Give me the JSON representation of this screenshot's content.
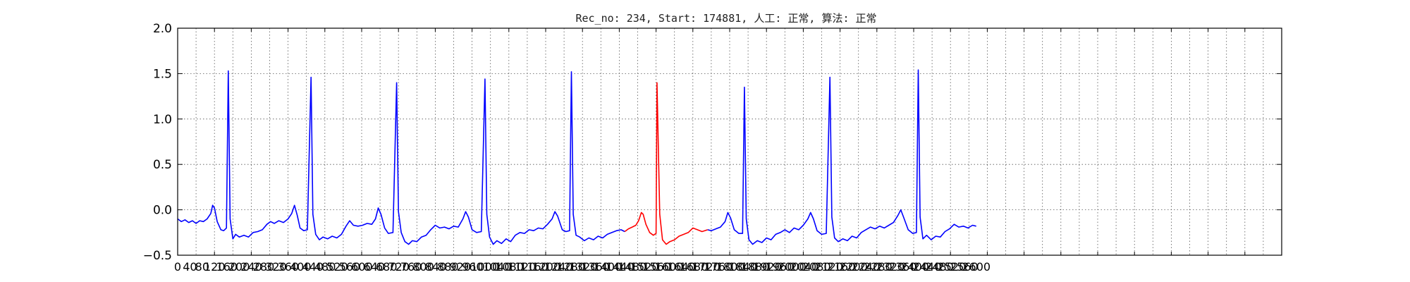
{
  "chart_data": {
    "type": "line",
    "title": "Rec_no: 234, Start: 174881, 人工: 正常, 算法: 正常",
    "xlabel": "",
    "ylabel": "",
    "xlim": [
      0,
      1200
    ],
    "ylim": [
      -0.5,
      2.0
    ],
    "grid": true,
    "y_ticks": [
      "2.0",
      "1.5",
      "1.0",
      "0.5",
      "0.0",
      "−0.5"
    ],
    "y_tick_values": [
      2.0,
      1.5,
      1.0,
      0.5,
      0.0,
      -0.5
    ],
    "x_ticks": [
      0,
      40,
      80,
      120,
      160,
      200,
      240,
      280,
      320,
      360,
      400,
      440,
      480,
      520,
      560,
      600,
      640,
      680,
      720,
      760,
      800,
      840,
      880,
      920,
      960,
      1000,
      1040,
      1080,
      1120,
      1160,
      1200,
      1240,
      1280,
      1320,
      1360,
      1400,
      1440,
      1480,
      1520,
      1560,
      1600,
      1640,
      1680,
      1720,
      1760,
      1800,
      1840,
      1880,
      1920,
      1960,
      2000,
      2040,
      2080,
      2120,
      2160,
      2200,
      2240,
      2280,
      2320,
      2360,
      2400,
      2440,
      2480,
      2520,
      2560,
      2600
    ],
    "signal_end_x": 868,
    "series": [
      {
        "color": "#0000ff",
        "segments": [
          [
            [
              0,
              -0.1
            ],
            [
              4,
              -0.13
            ],
            [
              8,
              -0.11
            ],
            [
              12,
              -0.14
            ],
            [
              16,
              -0.12
            ],
            [
              20,
              -0.15
            ],
            [
              24,
              -0.12
            ],
            [
              28,
              -0.13
            ],
            [
              32,
              -0.1
            ],
            [
              36,
              -0.04
            ],
            [
              38,
              0.05
            ],
            [
              40,
              0.02
            ],
            [
              43,
              -0.13
            ],
            [
              47,
              -0.22
            ],
            [
              50,
              -0.23
            ],
            [
              53,
              -0.2
            ],
            [
              55,
              1.53
            ],
            [
              57,
              -0.1
            ],
            [
              60,
              -0.32
            ],
            [
              63,
              -0.27
            ],
            [
              67,
              -0.3
            ],
            [
              72,
              -0.28
            ],
            [
              77,
              -0.3
            ],
            [
              82,
              -0.25
            ],
            [
              87,
              -0.24
            ],
            [
              92,
              -0.22
            ],
            [
              97,
              -0.16
            ],
            [
              101,
              -0.13
            ],
            [
              105,
              -0.15
            ],
            [
              110,
              -0.12
            ],
            [
              115,
              -0.14
            ],
            [
              120,
              -0.1
            ],
            [
              124,
              -0.04
            ],
            [
              127,
              0.05
            ],
            [
              130,
              -0.06
            ],
            [
              133,
              -0.2
            ],
            [
              137,
              -0.23
            ],
            [
              141,
              -0.22
            ],
            [
              145,
              1.46
            ],
            [
              147,
              -0.05
            ],
            [
              150,
              -0.27
            ],
            [
              154,
              -0.33
            ],
            [
              158,
              -0.3
            ],
            [
              163,
              -0.32
            ],
            [
              168,
              -0.29
            ],
            [
              173,
              -0.31
            ],
            [
              178,
              -0.27
            ],
            [
              183,
              -0.18
            ],
            [
              187,
              -0.12
            ],
            [
              191,
              -0.17
            ],
            [
              196,
              -0.18
            ],
            [
              201,
              -0.17
            ],
            [
              206,
              -0.15
            ],
            [
              211,
              -0.16
            ],
            [
              215,
              -0.1
            ],
            [
              218,
              0.02
            ],
            [
              221,
              -0.05
            ],
            [
              225,
              -0.2
            ],
            [
              229,
              -0.26
            ],
            [
              234,
              -0.25
            ],
            [
              238,
              1.4
            ],
            [
              240,
              -0.02
            ],
            [
              243,
              -0.25
            ],
            [
              247,
              -0.35
            ],
            [
              251,
              -0.38
            ],
            [
              255,
              -0.34
            ],
            [
              260,
              -0.35
            ],
            [
              265,
              -0.3
            ],
            [
              270,
              -0.28
            ],
            [
              275,
              -0.22
            ],
            [
              280,
              -0.17
            ],
            [
              285,
              -0.2
            ],
            [
              290,
              -0.19
            ],
            [
              295,
              -0.21
            ],
            [
              300,
              -0.18
            ],
            [
              305,
              -0.19
            ],
            [
              310,
              -0.1
            ],
            [
              313,
              -0.02
            ],
            [
              316,
              -0.08
            ],
            [
              320,
              -0.22
            ],
            [
              325,
              -0.25
            ],
            [
              330,
              -0.24
            ],
            [
              334,
              1.44
            ],
            [
              336,
              -0.05
            ],
            [
              339,
              -0.3
            ],
            [
              343,
              -0.38
            ],
            [
              347,
              -0.34
            ],
            [
              352,
              -0.37
            ],
            [
              357,
              -0.32
            ],
            [
              362,
              -0.35
            ],
            [
              367,
              -0.28
            ],
            [
              372,
              -0.25
            ],
            [
              377,
              -0.26
            ],
            [
              382,
              -0.22
            ],
            [
              387,
              -0.23
            ],
            [
              392,
              -0.2
            ],
            [
              397,
              -0.21
            ],
            [
              402,
              -0.16
            ],
            [
              407,
              -0.1
            ],
            [
              410,
              -0.02
            ],
            [
              413,
              -0.07
            ],
            [
              418,
              -0.22
            ],
            [
              422,
              -0.24
            ],
            [
              426,
              -0.23
            ],
            [
              428,
              1.52
            ],
            [
              430,
              -0.05
            ],
            [
              433,
              -0.28
            ],
            [
              437,
              -0.3
            ],
            [
              442,
              -0.34
            ],
            [
              447,
              -0.31
            ],
            [
              452,
              -0.33
            ],
            [
              457,
              -0.29
            ],
            [
              462,
              -0.31
            ],
            [
              467,
              -0.27
            ],
            [
              472,
              -0.25
            ],
            [
              477,
              -0.23
            ],
            [
              482,
              -0.22
            ],
            [
              486,
              -0.24
            ]
          ],
          [
            [
              576,
              -0.22
            ],
            [
              580,
              -0.23
            ],
            [
              585,
              -0.21
            ],
            [
              590,
              -0.19
            ],
            [
              595,
              -0.13
            ],
            [
              598,
              -0.03
            ],
            [
              601,
              -0.09
            ],
            [
              605,
              -0.22
            ],
            [
              610,
              -0.26
            ],
            [
              614,
              -0.26
            ],
            [
              616,
              1.35
            ],
            [
              618,
              -0.1
            ],
            [
              621,
              -0.33
            ],
            [
              625,
              -0.38
            ],
            [
              630,
              -0.34
            ],
            [
              635,
              -0.36
            ],
            [
              640,
              -0.31
            ],
            [
              645,
              -0.33
            ],
            [
              650,
              -0.27
            ],
            [
              655,
              -0.25
            ],
            [
              660,
              -0.22
            ],
            [
              665,
              -0.25
            ],
            [
              670,
              -0.2
            ],
            [
              675,
              -0.22
            ],
            [
              680,
              -0.17
            ],
            [
              685,
              -0.1
            ],
            [
              688,
              -0.03
            ],
            [
              691,
              -0.1
            ],
            [
              695,
              -0.23
            ],
            [
              700,
              -0.27
            ],
            [
              705,
              -0.26
            ],
            [
              709,
              1.46
            ],
            [
              711,
              -0.08
            ],
            [
              714,
              -0.31
            ],
            [
              718,
              -0.35
            ],
            [
              723,
              -0.32
            ],
            [
              728,
              -0.34
            ],
            [
              733,
              -0.29
            ],
            [
              738,
              -0.31
            ],
            [
              743,
              -0.25
            ],
            [
              748,
              -0.22
            ],
            [
              753,
              -0.19
            ],
            [
              758,
              -0.21
            ],
            [
              763,
              -0.18
            ],
            [
              768,
              -0.2
            ],
            [
              773,
              -0.17
            ],
            [
              778,
              -0.14
            ],
            [
              783,
              -0.06
            ],
            [
              786,
              0.0
            ],
            [
              789,
              -0.08
            ],
            [
              794,
              -0.22
            ],
            [
              799,
              -0.26
            ],
            [
              803,
              -0.25
            ],
            [
              805,
              1.54
            ],
            [
              807,
              -0.08
            ],
            [
              810,
              -0.32
            ],
            [
              814,
              -0.28
            ],
            [
              819,
              -0.33
            ],
            [
              824,
              -0.29
            ],
            [
              829,
              -0.3
            ],
            [
              834,
              -0.24
            ],
            [
              839,
              -0.21
            ],
            [
              844,
              -0.16
            ],
            [
              849,
              -0.19
            ],
            [
              854,
              -0.18
            ],
            [
              859,
              -0.2
            ],
            [
              864,
              -0.17
            ],
            [
              868,
              -0.18
            ]
          ]
        ]
      },
      {
        "color": "#ff0000",
        "segments": [
          [
            [
              486,
              -0.24
            ],
            [
              490,
              -0.21
            ],
            [
              494,
              -0.19
            ],
            [
              498,
              -0.17
            ],
            [
              501,
              -0.12
            ],
            [
              504,
              -0.03
            ],
            [
              506,
              -0.05
            ],
            [
              509,
              -0.16
            ],
            [
              513,
              -0.25
            ],
            [
              517,
              -0.28
            ],
            [
              520,
              -0.26
            ],
            [
              521,
              1.4
            ],
            [
              524,
              -0.05
            ],
            [
              527,
              -0.33
            ],
            [
              531,
              -0.38
            ],
            [
              535,
              -0.35
            ],
            [
              540,
              -0.33
            ],
            [
              545,
              -0.29
            ],
            [
              550,
              -0.27
            ],
            [
              555,
              -0.25
            ],
            [
              560,
              -0.2
            ],
            [
              565,
              -0.22
            ],
            [
              570,
              -0.24
            ],
            [
              576,
              -0.22
            ]
          ]
        ]
      }
    ]
  }
}
